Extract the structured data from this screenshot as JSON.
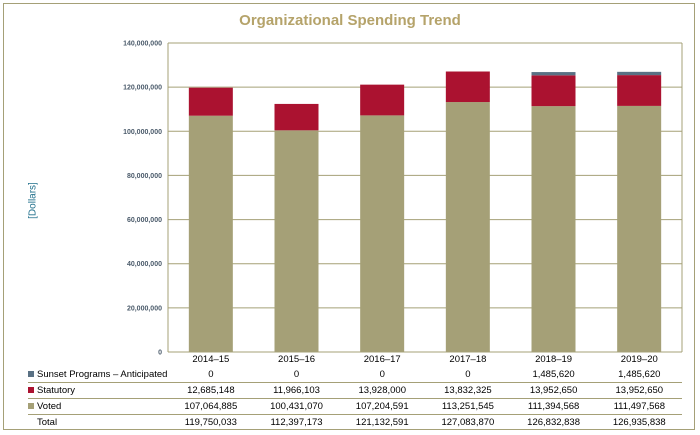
{
  "chart_data": {
    "type": "bar",
    "stacked": true,
    "title": "Organizational Spending Trend",
    "ylabel": "[Dollars]",
    "ylim": [
      0,
      140000000
    ],
    "yticks": [
      "0",
      "20,000,000",
      "40,000,000",
      "60,000,000",
      "80,000,000",
      "100,000,000",
      "120,000,000",
      "140,000,000"
    ],
    "categories": [
      "2014–15",
      "2015–16",
      "2016–17",
      "2017–18",
      "2018–19",
      "2019–20"
    ],
    "series": [
      {
        "name": "Voted",
        "color": "#a5a077",
        "values": [
          107064885,
          100431070,
          107204591,
          113251545,
          111394568,
          111497568
        ],
        "labels": [
          "107,064,885",
          "100,431,070",
          "107,204,591",
          "113,251,545",
          "111,394,568",
          "111,497,568"
        ]
      },
      {
        "name": "Statutory",
        "color": "#ab1230",
        "values": [
          12685148,
          11966103,
          13928000,
          13832325,
          13952650,
          13952650
        ],
        "labels": [
          "12,685,148",
          "11,966,103",
          "13,928,000",
          "13,832,325",
          "13,952,650",
          "13,952,650"
        ]
      },
      {
        "name": "Sunset Programs – Anticipated",
        "color": "#5a7184",
        "values": [
          0,
          0,
          0,
          0,
          1485620,
          1485620
        ],
        "labels": [
          "0",
          "0",
          "0",
          "0",
          "1,485,620",
          "1,485,620"
        ]
      }
    ],
    "total": {
      "name": "Total",
      "labels": [
        "119,750,033",
        "112,397,173",
        "121,132,591",
        "127,083,870",
        "126,832,838",
        "126,935,838"
      ]
    },
    "grid": true
  }
}
